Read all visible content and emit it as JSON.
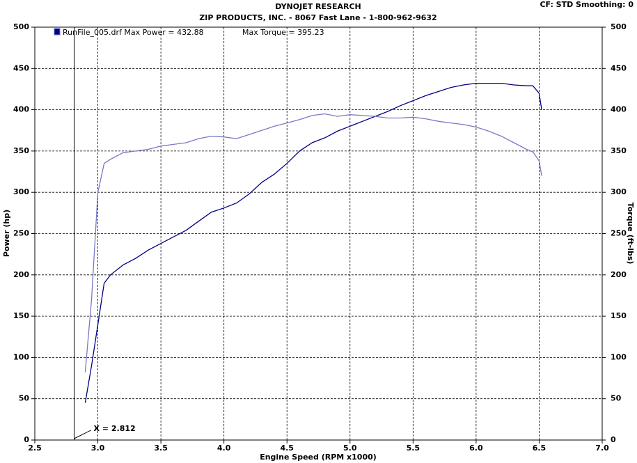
{
  "chart_data": {
    "type": "line",
    "title": "DYNOJET RESEARCH",
    "subtitle": "ZIP PRODUCTS, INC. - 8067 Fast Lane - 1-800-962-9632",
    "header_note": "CF: STD  Smoothing: 0",
    "x_label": "Engine Speed (RPM x1000)",
    "y_label": "Power (hp)",
    "y2_label": "Torque (ft-lbs)",
    "cursor_x": 2.812,
    "cursor_label": "X = 2.812",
    "grid": true,
    "x": [
      2.9,
      2.95,
      3.0,
      3.05,
      3.1,
      3.2,
      3.3,
      3.4,
      3.5,
      3.6,
      3.7,
      3.8,
      3.9,
      4.0,
      4.1,
      4.2,
      4.3,
      4.4,
      4.5,
      4.6,
      4.7,
      4.8,
      4.9,
      5.0,
      5.1,
      5.2,
      5.3,
      5.4,
      5.5,
      5.6,
      5.7,
      5.8,
      5.9,
      6.0,
      6.1,
      6.2,
      6.3,
      6.4,
      6.45,
      6.5,
      6.52
    ],
    "series": [
      {
        "name": "RunFile_005.drf Max Power = 432.88",
        "color": "#000080",
        "values": [
          45,
          90,
          140,
          190,
          200,
          212,
          220,
          230,
          238,
          246,
          254,
          265,
          276,
          281,
          287,
          298,
          312,
          322,
          335,
          350,
          360,
          366,
          374,
          380,
          386,
          392,
          398,
          405,
          411,
          417,
          422,
          427,
          430,
          432,
          432,
          432,
          430,
          429,
          429,
          420,
          400
        ]
      },
      {
        "name": "Max Torque = 395.23",
        "color": "#7878c8",
        "axis": "y2",
        "values": [
          82,
          170,
          300,
          335,
          340,
          348,
          350,
          352,
          356,
          358,
          360,
          365,
          368,
          367,
          365,
          370,
          375,
          380,
          384,
          388,
          393,
          395,
          392,
          394,
          393,
          392,
          390,
          390,
          391,
          389,
          386,
          384,
          382,
          379,
          374,
          368,
          360,
          352,
          349,
          338,
          320
        ]
      }
    ],
    "xlim": [
      2.5,
      7.0
    ],
    "xticks": [
      {
        "value": 2.5,
        "label": "2.5"
      },
      {
        "value": 3.0,
        "label": "3.0"
      },
      {
        "value": 3.5,
        "label": "3.5"
      },
      {
        "value": 4.0,
        "label": "4.0"
      },
      {
        "value": 4.5,
        "label": "4.5"
      },
      {
        "value": 5.0,
        "label": "5.0"
      },
      {
        "value": 5.5,
        "label": "5.5"
      },
      {
        "value": 6.0,
        "label": "6.0"
      },
      {
        "value": 6.5,
        "label": "6.5"
      },
      {
        "value": 7.0,
        "label": "7.0"
      }
    ],
    "ylim": [
      0,
      500
    ],
    "yticks": [
      0,
      50,
      100,
      150,
      200,
      250,
      300,
      350,
      400,
      450,
      500
    ],
    "y2lim": [
      0,
      500
    ],
    "y2ticks": [
      0,
      50,
      100,
      150,
      200,
      250,
      300,
      350,
      400,
      450,
      500
    ]
  }
}
